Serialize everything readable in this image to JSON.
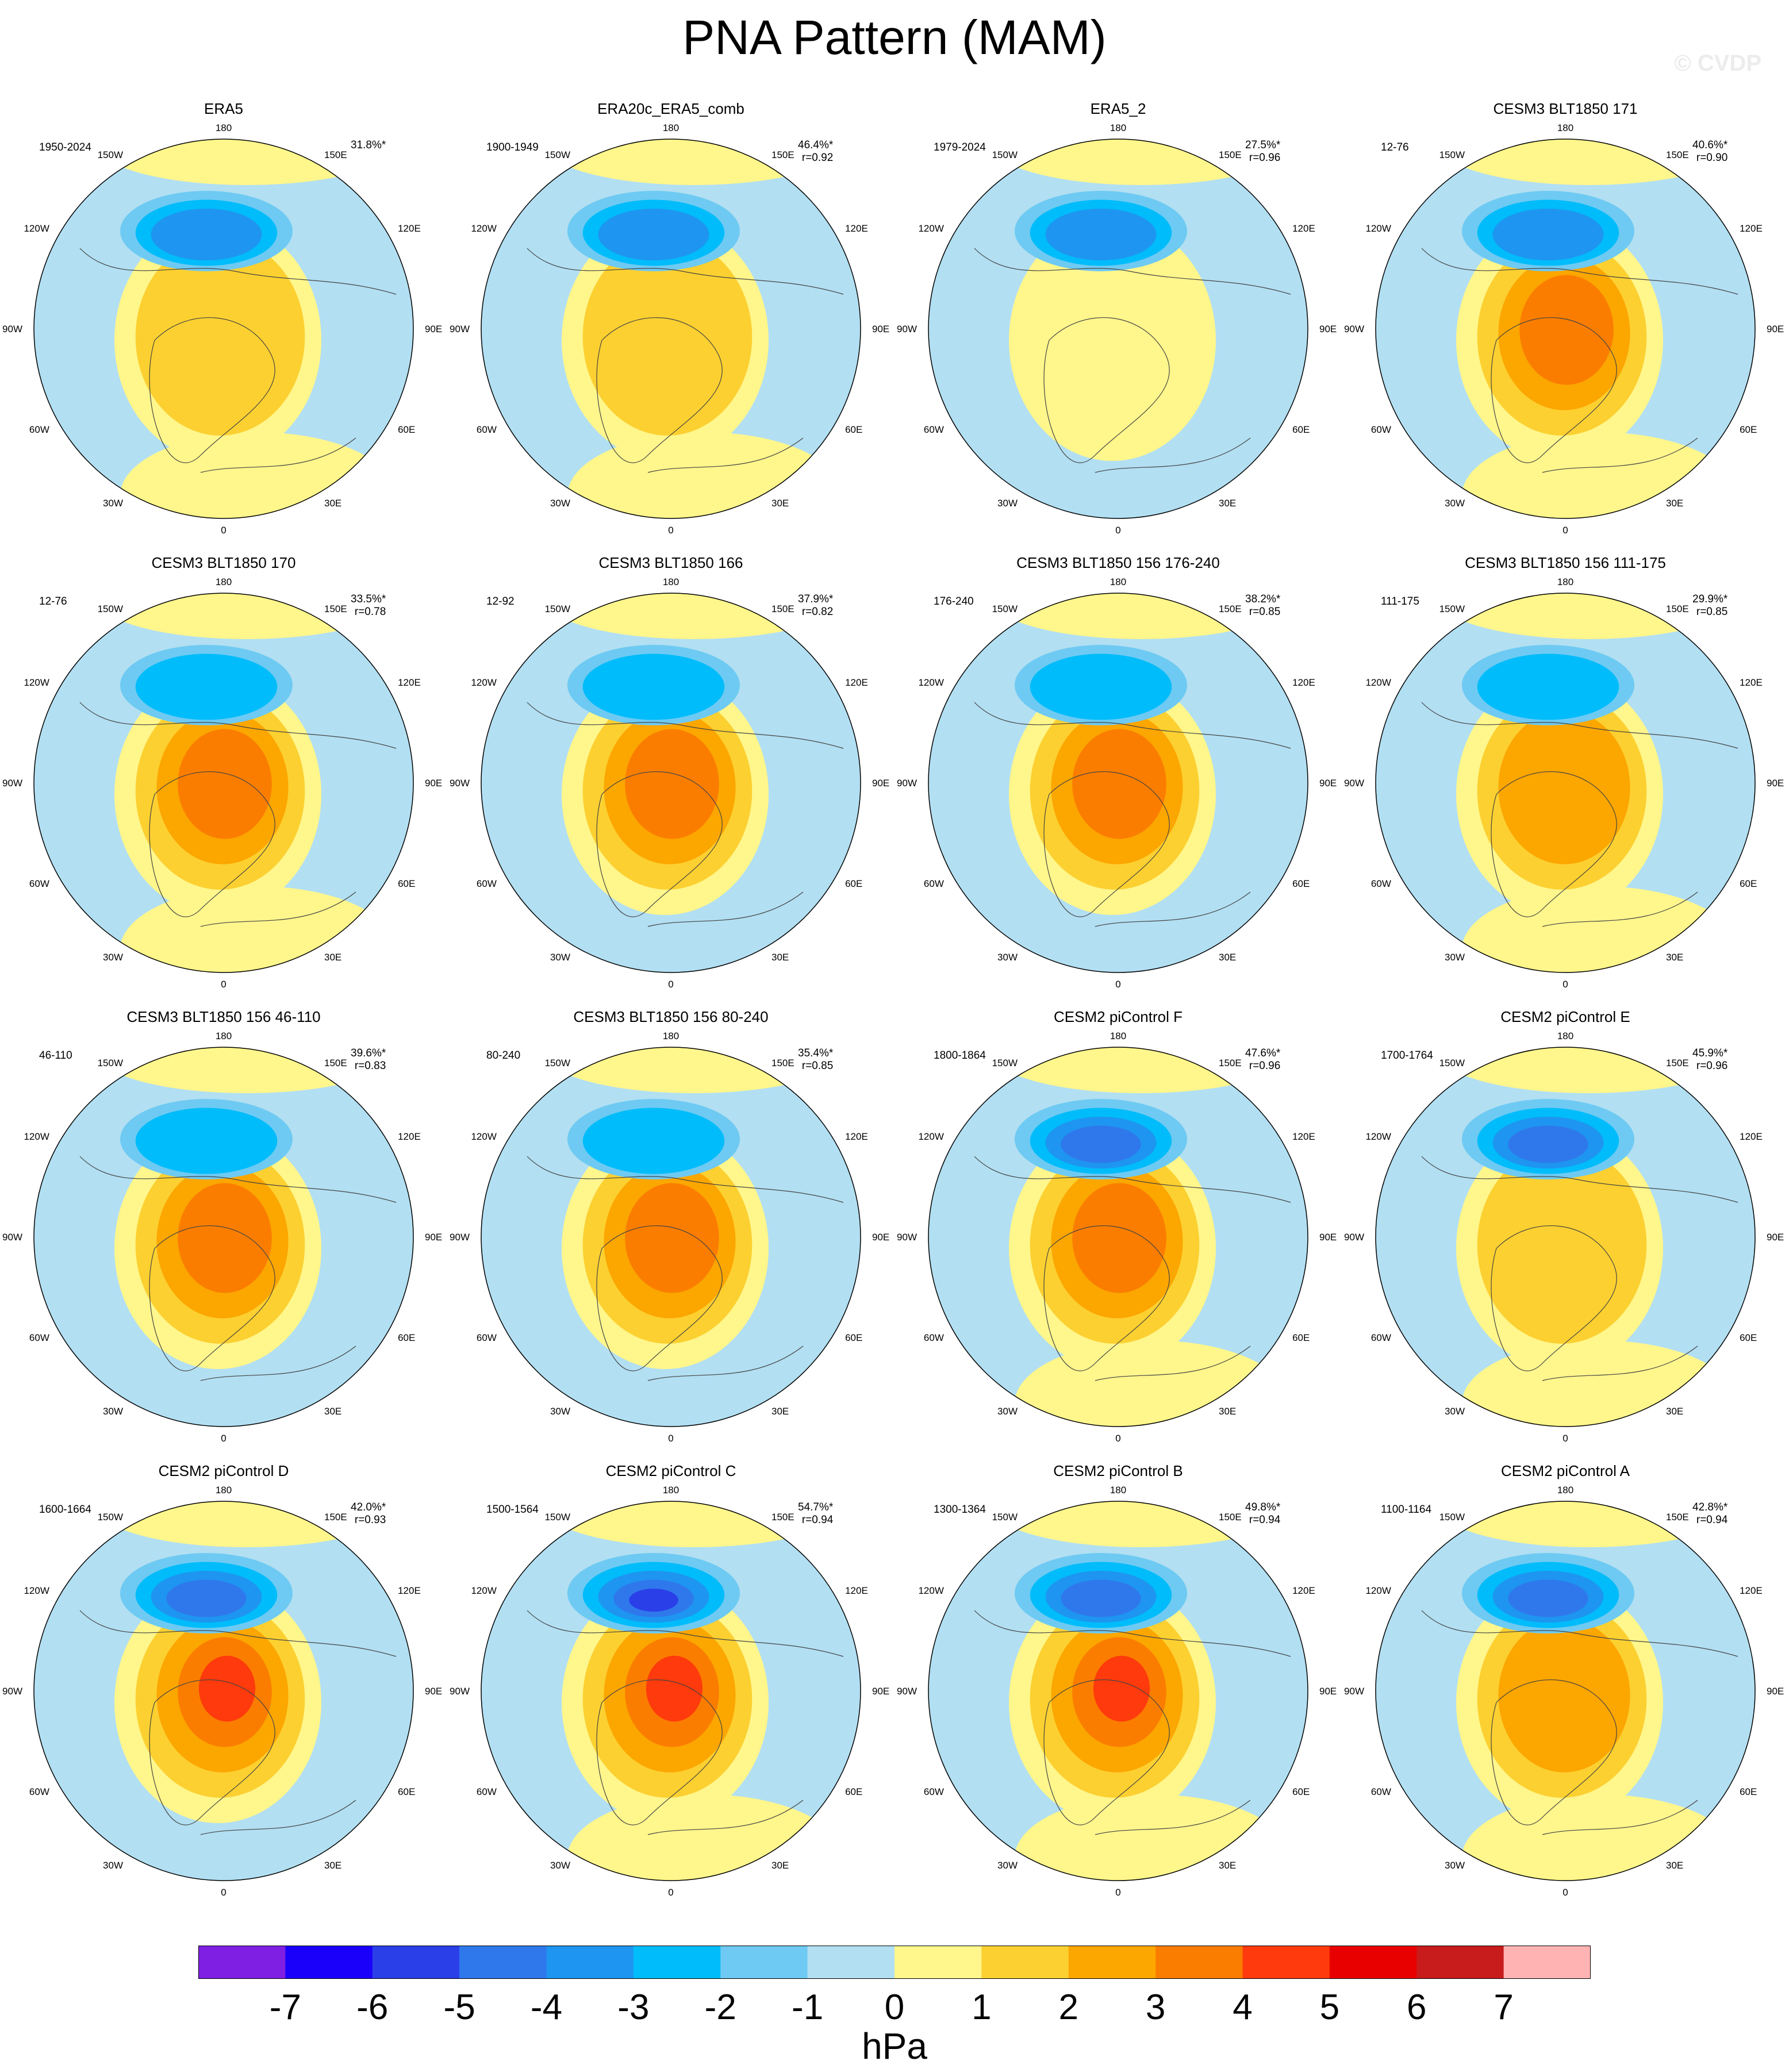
{
  "title": "PNA Pattern (MAM)",
  "watermark": "© CVDP",
  "longitude_labels": [
    "180",
    "150E",
    "120E",
    "90E",
    "60E",
    "30E",
    "0",
    "30W",
    "60W",
    "90W",
    "120W",
    "150W"
  ],
  "colorbar": {
    "units": "hPa",
    "ticks": [
      "-7",
      "-6",
      "-5",
      "-4",
      "-3",
      "-2",
      "-1",
      "0",
      "1",
      "2",
      "3",
      "4",
      "5",
      "6",
      "7"
    ],
    "colors": [
      "#7f1fe3",
      "#1a00fa",
      "#2a3fe8",
      "#2f78ec",
      "#1e95f0",
      "#00bcfa",
      "#6ecaf2",
      "#b2dff2",
      "#fff68c",
      "#fcd030",
      "#fca600",
      "#fa7d00",
      "#ff3a0c",
      "#e80000",
      "#c81b1b",
      "#ffb3b3"
    ]
  },
  "panels": [
    {
      "title": "ERA5",
      "period": "1950-2024",
      "variance": "31.8%*",
      "corr": "",
      "neg": 0.6,
      "pos": 0.45,
      "yellow_sub": true
    },
    {
      "title": "ERA20c_ERA5_comb",
      "period": "1900-1949",
      "variance": "46.4%*",
      "corr": "r=0.92",
      "neg": 0.65,
      "pos": 0.35,
      "yellow_sub": true
    },
    {
      "title": "ERA5_2",
      "period": "1979-2024",
      "variance": "27.5%*",
      "corr": "r=0.96",
      "neg": 0.55,
      "pos": 0.15,
      "yellow_sub": false
    },
    {
      "title": "CESM3 BLT1850 171",
      "period": "12-76",
      "variance": "40.6%*",
      "corr": "r=0.90",
      "neg": 0.5,
      "pos": 0.7,
      "yellow_sub": true
    },
    {
      "title": "CESM3 BLT1850 170",
      "period": "12-76",
      "variance": "33.5%*",
      "corr": "r=0.78",
      "neg": 0.45,
      "pos": 0.8,
      "yellow_sub": true
    },
    {
      "title": "CESM3 BLT1850 166",
      "period": "12-92",
      "variance": "37.9%*",
      "corr": "r=0.82",
      "neg": 0.4,
      "pos": 0.75,
      "yellow_sub": false
    },
    {
      "title": "CESM3 BLT1850 156 176-240",
      "period": "176-240",
      "variance": "38.2%*",
      "corr": "r=0.85",
      "neg": 0.45,
      "pos": 0.85,
      "yellow_sub": false
    },
    {
      "title": "CESM3 BLT1850 156 111-175",
      "period": "111-175",
      "variance": "29.9%*",
      "corr": "r=0.85",
      "neg": 0.4,
      "pos": 0.65,
      "yellow_sub": true
    },
    {
      "title": "CESM3 BLT1850 156 46-110",
      "period": "46-110",
      "variance": "39.6%*",
      "corr": "r=0.83",
      "neg": 0.45,
      "pos": 0.85,
      "yellow_sub": false
    },
    {
      "title": "CESM3 BLT1850 156 80-240",
      "period": "80-240",
      "variance": "35.4%*",
      "corr": "r=0.85",
      "neg": 0.45,
      "pos": 0.8,
      "yellow_sub": false
    },
    {
      "title": "CESM2 piControl F",
      "period": "1800-1864",
      "variance": "47.6%*",
      "corr": "r=0.96",
      "neg": 0.8,
      "pos": 0.85,
      "yellow_sub": true
    },
    {
      "title": "CESM2 piControl E",
      "period": "1700-1764",
      "variance": "45.9%*",
      "corr": "r=0.96",
      "neg": 0.75,
      "pos": 0.45,
      "yellow_sub": true
    },
    {
      "title": "CESM2 piControl D",
      "period": "1600-1664",
      "variance": "42.0%*",
      "corr": "r=0.93",
      "neg": 0.8,
      "pos": 0.9,
      "yellow_sub": false
    },
    {
      "title": "CESM2 piControl C",
      "period": "1500-1564",
      "variance": "54.7%*",
      "corr": "r=0.94",
      "neg": 0.9,
      "pos": 0.9,
      "yellow_sub": true
    },
    {
      "title": "CESM2 piControl B",
      "period": "1300-1364",
      "variance": "49.8%*",
      "corr": "r=0.94",
      "neg": 0.85,
      "pos": 0.9,
      "yellow_sub": true
    },
    {
      "title": "CESM2 piControl A",
      "period": "1100-1164",
      "variance": "42.8%*",
      "corr": "r=0.94",
      "neg": 0.7,
      "pos": 0.5,
      "yellow_sub": true
    }
  ]
}
